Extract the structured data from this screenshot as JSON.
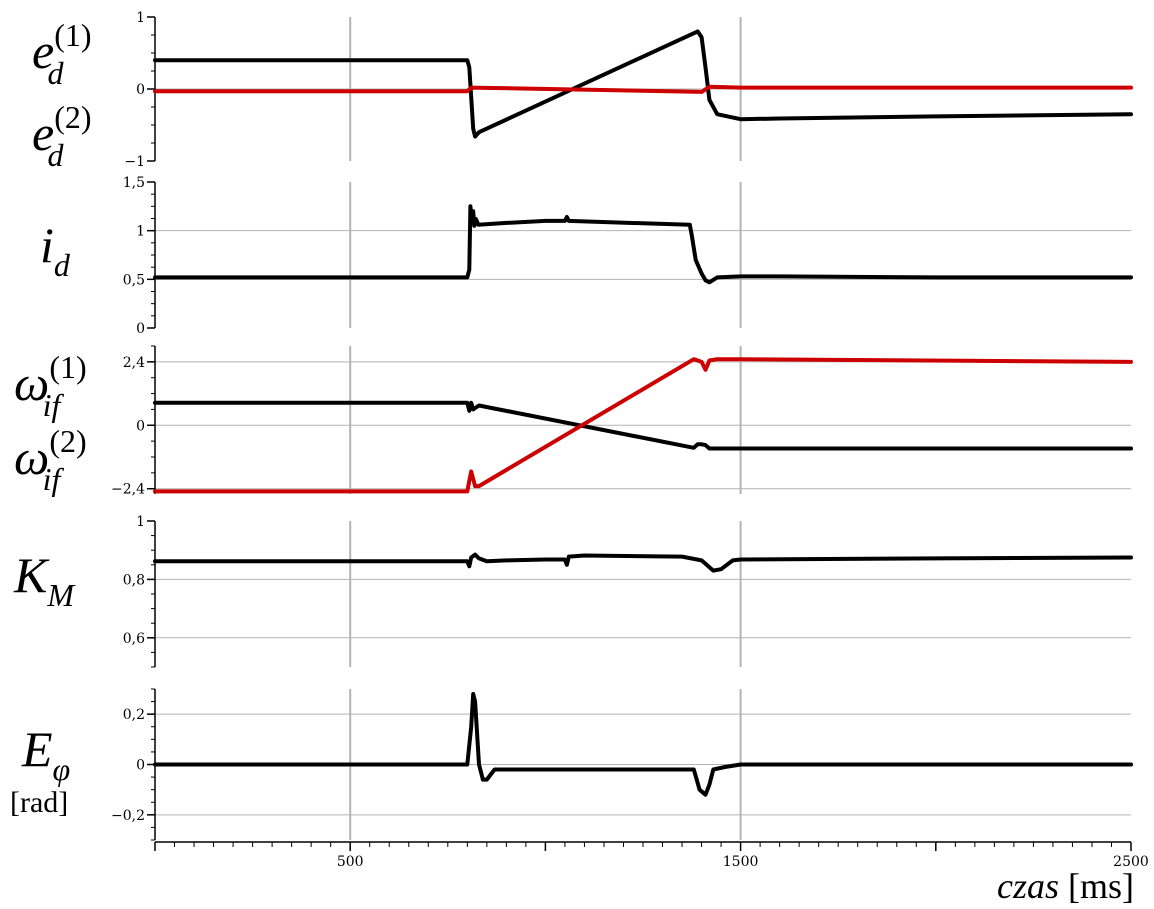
{
  "colors": {
    "primary": "#000000",
    "secondary": "#cc0000",
    "grid": "#b3b3b3"
  },
  "x_axis": {
    "label_italic": "czas",
    "label_unit": "[ms]",
    "ticks": [
      "500",
      "1500",
      "2500"
    ]
  },
  "chart_data": [
    {
      "type": "line",
      "ylabel": {
        "base": "e",
        "sub": "d"
      },
      "series": [
        {
          "name": "e_d^(1)",
          "label": {
            "base": "e",
            "sub": "d",
            "sup": "(1)"
          },
          "color": "#000000",
          "x": [
            0,
            800,
            805,
            815,
            820,
            830,
            1390,
            1400,
            1410,
            1420,
            1440,
            1500,
            1600,
            2000,
            2500
          ],
          "y": [
            0.4,
            0.4,
            0.3,
            -0.55,
            -0.66,
            -0.6,
            0.8,
            0.72,
            0.3,
            -0.15,
            -0.35,
            -0.42,
            -0.41,
            -0.38,
            -0.35
          ]
        },
        {
          "name": "e_d^(2)",
          "label": {
            "base": "e",
            "sub": "d",
            "sup": "(2)"
          },
          "color": "#cc0000",
          "x": [
            0,
            800,
            810,
            1400,
            1420,
            1500,
            2500
          ],
          "y": [
            -0.03,
            -0.03,
            0.02,
            -0.04,
            0.03,
            0.02,
            0.02
          ]
        }
      ],
      "ylim": [
        -1,
        1
      ],
      "yticks": [
        -1,
        0,
        1
      ],
      "yticklabels": [
        "−1",
        "0",
        "1"
      ],
      "grid_y": [
        0
      ],
      "grid_x": [
        500,
        1500
      ]
    },
    {
      "type": "line",
      "ylabel": {
        "base": "i",
        "sub": "d"
      },
      "series": [
        {
          "name": "i_d",
          "color": "#000000",
          "x": [
            0,
            800,
            805,
            808,
            812,
            815,
            818,
            822,
            828,
            900,
            1000,
            1050,
            1055,
            1060,
            1370,
            1375,
            1385,
            1400,
            1410,
            1420,
            1440,
            1500,
            1600,
            2000,
            2500
          ],
          "y": [
            0.52,
            0.52,
            0.6,
            1.25,
            1.08,
            1.2,
            1.05,
            1.12,
            1.06,
            1.08,
            1.1,
            1.1,
            1.14,
            1.1,
            1.06,
            0.95,
            0.7,
            0.56,
            0.49,
            0.47,
            0.52,
            0.53,
            0.53,
            0.52,
            0.52
          ]
        }
      ],
      "ylim": [
        0,
        1.5
      ],
      "yticks": [
        0,
        0.5,
        1,
        1.5
      ],
      "yticklabels": [
        "0",
        "0,5",
        "1",
        "1,5"
      ],
      "grid_y": [
        0.5,
        1
      ],
      "grid_x": [
        500,
        1500
      ]
    },
    {
      "type": "line",
      "ylabel": {
        "base": "ω",
        "sub": "if"
      },
      "series": [
        {
          "name": "ω_if^(1)",
          "label": {
            "base": "ω",
            "sub": "if",
            "sup": "(1)"
          },
          "color": "#000000",
          "x": [
            0,
            800,
            805,
            810,
            815,
            830,
            1380,
            1390,
            1400,
            1410,
            1420,
            1440,
            2500
          ],
          "y": [
            0.85,
            0.85,
            0.55,
            0.85,
            0.6,
            0.75,
            -0.85,
            -0.72,
            -0.72,
            -0.75,
            -0.88,
            -0.88,
            -0.88
          ]
        },
        {
          "name": "ω_if^(2)",
          "label": {
            "base": "ω",
            "sub": "if",
            "sup": "(2)"
          },
          "color": "#cc0000",
          "x": [
            0,
            800,
            805,
            810,
            820,
            830,
            1380,
            1400,
            1410,
            1420,
            1440,
            1500,
            2500
          ],
          "y": [
            -2.5,
            -2.5,
            -2.1,
            -1.75,
            -2.3,
            -2.3,
            2.5,
            2.4,
            2.1,
            2.45,
            2.5,
            2.5,
            2.4
          ]
        }
      ],
      "ylim": [
        -2.6,
        3.0
      ],
      "yticks": [
        -2.4,
        0,
        2.4
      ],
      "yticklabels": [
        "−2,4",
        "0",
        "2,4"
      ],
      "grid_y": [
        -2.4,
        0,
        2.4
      ],
      "grid_x": [
        500,
        1500
      ]
    },
    {
      "type": "line",
      "ylabel": {
        "base": "K",
        "sub": "M"
      },
      "series": [
        {
          "name": "K_M",
          "color": "#000000",
          "x": [
            0,
            800,
            805,
            810,
            820,
            830,
            850,
            900,
            1000,
            1050,
            1055,
            1060,
            1100,
            1350,
            1400,
            1430,
            1450,
            1480,
            1500,
            2000,
            2500
          ],
          "y": [
            0.862,
            0.862,
            0.845,
            0.875,
            0.885,
            0.872,
            0.862,
            0.865,
            0.868,
            0.868,
            0.85,
            0.878,
            0.882,
            0.878,
            0.865,
            0.83,
            0.835,
            0.865,
            0.868,
            0.872,
            0.875
          ]
        }
      ],
      "ylim": [
        0.5,
        1.0
      ],
      "yticks": [
        0.6,
        0.8,
        1
      ],
      "yticklabels": [
        "0,6",
        "0,8",
        "1"
      ],
      "grid_y": [
        0.6,
        0.8
      ],
      "grid_x": [
        500,
        1500
      ]
    },
    {
      "type": "line",
      "ylabel": {
        "base": "E",
        "sub": "φ",
        "unit": "[rad]"
      },
      "series": [
        {
          "name": "E_φ",
          "color": "#000000",
          "x": [
            0,
            800,
            810,
            815,
            820,
            830,
            840,
            850,
            870,
            900,
            1000,
            1380,
            1395,
            1410,
            1420,
            1430,
            1460,
            1500,
            2000,
            2500
          ],
          "y": [
            0,
            0,
            0.15,
            0.28,
            0.25,
            0,
            -0.06,
            -0.06,
            -0.02,
            -0.02,
            -0.02,
            -0.02,
            -0.1,
            -0.12,
            -0.08,
            -0.02,
            -0.01,
            0,
            0,
            0
          ]
        }
      ],
      "ylim": [
        -0.3,
        0.3
      ],
      "yticks": [
        -0.2,
        0,
        0.2
      ],
      "yticklabels": [
        "−0,2",
        "0",
        "0,2"
      ],
      "grid_y": [
        -0.2,
        0,
        0.2
      ],
      "grid_x": [
        500,
        1500
      ]
    }
  ]
}
